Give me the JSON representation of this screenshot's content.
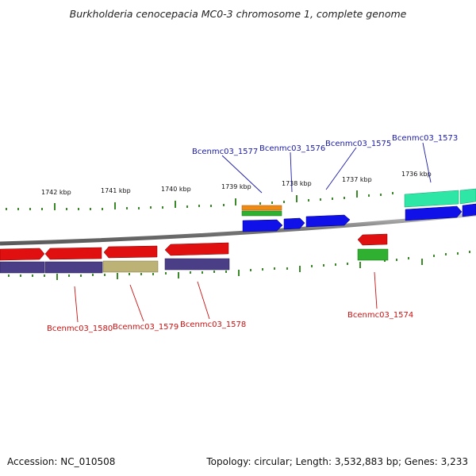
{
  "title": "Burkholderia cenocepacia MC0-3 chromosome 1, complete genome",
  "footer": {
    "accession": "Accession: NC_010508",
    "topology": "Topology: circular; Length: 3,532,883 bp; Genes: 3,233"
  },
  "colors": {
    "backbone": "#8a8a8a",
    "forward_gene": "#1010e8",
    "reverse_gene": "#e01010",
    "cds_purple": "#4a3f86",
    "cds_khaki": "#bcb275",
    "teal": "#2ee6a6",
    "orange": "#f08a10",
    "green": "#30b030",
    "tick": "#3a8a2a",
    "label_top": "#1a1aaa",
    "label_bottom": "#cc1010"
  },
  "kbp_labels": [
    "1742 kbp",
    "1741 kbp",
    "1740 kbp",
    "1739 kbp",
    "1738 kbp",
    "1737 kbp",
    "1736 kbp"
  ],
  "top_gene_labels": [
    "Bcenmc03_1577",
    "Bcenmc03_1576",
    "Bcenmc03_1575",
    "Bcenmc03_1573"
  ],
  "bottom_gene_labels": [
    "Bcenmc03_1580",
    "Bcenmc03_1579",
    "Bcenmc03_1578",
    "Bcenmc03_1574"
  ]
}
